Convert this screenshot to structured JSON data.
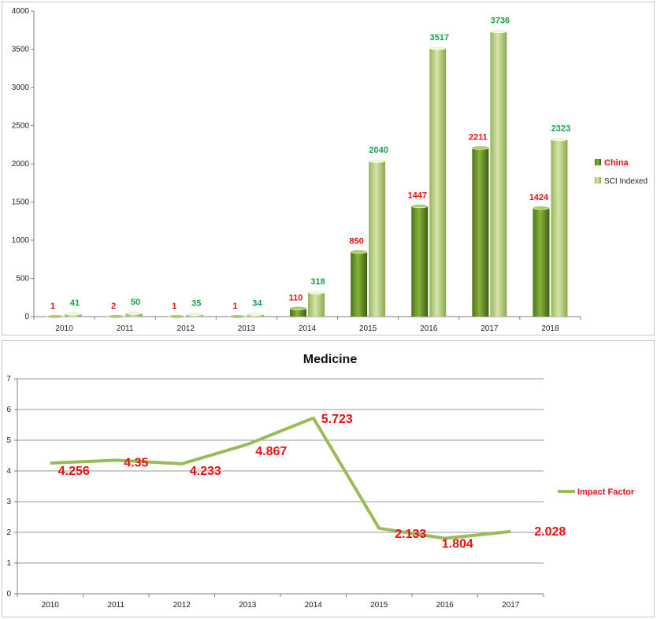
{
  "chart_data": [
    {
      "type": "bar",
      "categories": [
        "2010",
        "2011",
        "2012",
        "2013",
        "2014",
        "2015",
        "2016",
        "2017",
        "2018"
      ],
      "series": [
        {
          "name": "China",
          "values": [
            1,
            2,
            1,
            1,
            110,
            850,
            1447,
            2211,
            1424
          ],
          "color": "#6f9a2c"
        },
        {
          "name": "SCI Indexed",
          "values": [
            41,
            50,
            35,
            34,
            318,
            2040,
            3517,
            3736,
            2323
          ],
          "color": "#b5cf7c"
        }
      ],
      "ylim": [
        0,
        4000
      ],
      "yticks": [
        0,
        500,
        1000,
        1500,
        2000,
        2500,
        3000,
        3500,
        4000
      ],
      "title": "",
      "xlabel": "",
      "ylabel": "",
      "legend": "right"
    },
    {
      "type": "line",
      "title": "Medicine",
      "categories": [
        "2010",
        "2011",
        "2012",
        "2013",
        "2014",
        "2015",
        "2016",
        "2017"
      ],
      "series": [
        {
          "name": "Impact Factor",
          "values": [
            4.256,
            4.35,
            4.233,
            4.867,
            5.723,
            2.133,
            1.804,
            2.028
          ],
          "labels": [
            "4.256",
            "4.35",
            "4.233",
            "4.867",
            "5.723",
            "2.133",
            "1.804",
            "2.028"
          ],
          "color": "#9bbb59"
        }
      ],
      "ylim": [
        0,
        7
      ],
      "yticks": [
        0,
        1,
        2,
        3,
        4,
        5,
        6,
        7
      ],
      "xlabel": "",
      "ylabel": "",
      "legend": "right"
    }
  ]
}
